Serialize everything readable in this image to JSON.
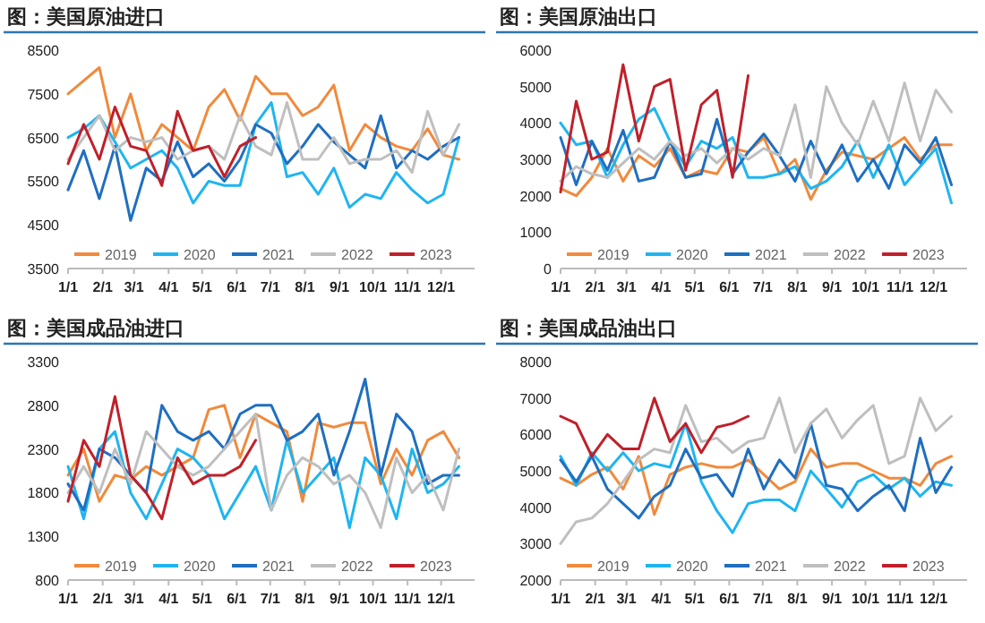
{
  "chart_data": [
    {
      "type": "line",
      "title": "图：美国原油进口",
      "x": [
        "--01-01",
        "--01-15",
        "--01-29",
        "--02-12",
        "--02-26",
        "--03-12",
        "--03-26",
        "--04-09",
        "--04-23",
        "--05-07",
        "--05-21",
        "--06-04",
        "--06-18",
        "--07-02",
        "--07-16",
        "--07-30",
        "--08-13",
        "--08-27",
        "--09-10",
        "--09-24",
        "--10-08",
        "--10-22",
        "--11-05",
        "--11-19",
        "--12-03",
        "--12-17"
      ],
      "xlim": [
        "--01-01",
        "--12-31"
      ],
      "xticks": [
        {
          "value": "--01-01",
          "label": "1/1"
        },
        {
          "value": "--02-01",
          "label": "2/1"
        },
        {
          "value": "--03-01",
          "label": "3/1"
        },
        {
          "value": "--04-01",
          "label": "4/1"
        },
        {
          "value": "--05-01",
          "label": "5/1"
        },
        {
          "value": "--06-01",
          "label": "6/1"
        },
        {
          "value": "--07-01",
          "label": "7/1"
        },
        {
          "value": "--08-01",
          "label": "8/1"
        },
        {
          "value": "--09-01",
          "label": "9/1"
        },
        {
          "value": "--10-01",
          "label": "10/1"
        },
        {
          "value": "--11-01",
          "label": "11/1"
        },
        {
          "value": "--12-01",
          "label": "12/1"
        }
      ],
      "ylim": [
        3500,
        8500
      ],
      "yticks": [
        3500,
        4500,
        5500,
        6500,
        7500,
        8500
      ],
      "legend": "bottom",
      "grid": false,
      "series": [
        {
          "name": "2019",
          "color": "#f08a3c",
          "values": [
            7500,
            7800,
            8100,
            6500,
            7500,
            6200,
            6800,
            6500,
            6200,
            7200,
            7600,
            6900,
            7900,
            7500,
            7500,
            7000,
            7200,
            7700,
            6200,
            6800,
            6500,
            6300,
            6200,
            6700,
            6100,
            6000
          ]
        },
        {
          "name": "2020",
          "color": "#1fb5f0",
          "values": [
            6500,
            6700,
            7000,
            6400,
            5800,
            6000,
            6200,
            5800,
            5000,
            5500,
            5400,
            5400,
            6800,
            7300,
            5600,
            5700,
            5200,
            5800,
            4900,
            5200,
            5100,
            5700,
            5300,
            5000,
            5200,
            6500
          ]
        },
        {
          "name": "2021",
          "color": "#1f6fc0",
          "values": [
            5300,
            6200,
            5100,
            6300,
            4600,
            5800,
            5500,
            6400,
            5600,
            5900,
            5500,
            6000,
            6800,
            6600,
            5900,
            6300,
            6800,
            6400,
            6100,
            5800,
            7000,
            5800,
            6200,
            6000,
            6300,
            6500
          ]
        },
        {
          "name": "2022",
          "color": "#bfbfbf",
          "values": [
            6000,
            6500,
            7000,
            6200,
            6500,
            6400,
            6500,
            6000,
            6200,
            6300,
            6000,
            7000,
            6300,
            6100,
            7300,
            6000,
            6000,
            6500,
            5900,
            6000,
            6000,
            6200,
            5700,
            7100,
            6100,
            6800
          ]
        },
        {
          "name": "2023",
          "color": "#c0202a",
          "x": [
            "--01-01",
            "--01-15",
            "--01-29",
            "--02-12",
            "--02-26",
            "--03-12",
            "--03-26",
            "--04-09",
            "--04-23",
            "--05-07",
            "--05-21",
            "--06-04",
            "--06-18"
          ],
          "values": [
            5900,
            6800,
            6000,
            7200,
            6300,
            6200,
            5400,
            7100,
            6200,
            6300,
            5600,
            6300,
            6500
          ]
        }
      ]
    },
    {
      "type": "line",
      "title": "图：美国原油出口",
      "x": [
        "--01-01",
        "--01-15",
        "--01-29",
        "--02-12",
        "--02-26",
        "--03-12",
        "--03-26",
        "--04-09",
        "--04-23",
        "--05-07",
        "--05-21",
        "--06-04",
        "--06-18",
        "--07-02",
        "--07-16",
        "--07-30",
        "--08-13",
        "--08-27",
        "--09-10",
        "--09-24",
        "--10-08",
        "--10-22",
        "--11-05",
        "--11-19",
        "--12-03",
        "--12-17"
      ],
      "xlim": [
        "--01-01",
        "--12-31"
      ],
      "xticks": [
        {
          "value": "--01-01",
          "label": "1/1"
        },
        {
          "value": "--02-01",
          "label": "2/1"
        },
        {
          "value": "--03-01",
          "label": "3/1"
        },
        {
          "value": "--04-01",
          "label": "4/1"
        },
        {
          "value": "--05-01",
          "label": "5/1"
        },
        {
          "value": "--06-01",
          "label": "6/1"
        },
        {
          "value": "--07-01",
          "label": "7/1"
        },
        {
          "value": "--08-01",
          "label": "8/1"
        },
        {
          "value": "--09-01",
          "label": "9/1"
        },
        {
          "value": "--10-01",
          "label": "10/1"
        },
        {
          "value": "--11-01",
          "label": "11/1"
        },
        {
          "value": "--12-01",
          "label": "12/1"
        }
      ],
      "ylim": [
        0,
        6000
      ],
      "yticks": [
        0,
        1000,
        2000,
        3000,
        4000,
        5000,
        6000
      ],
      "legend": "bottom",
      "grid": false,
      "series": [
        {
          "name": "2019",
          "color": "#f08a3c",
          "values": [
            2200,
            2000,
            2500,
            3300,
            2400,
            3100,
            2800,
            3300,
            2500,
            2700,
            2600,
            3300,
            3200,
            3600,
            2600,
            3000,
            1900,
            2700,
            3200,
            3100,
            3000,
            3300,
            3600,
            3000,
            3400,
            3400
          ]
        },
        {
          "name": "2020",
          "color": "#1fb5f0",
          "values": [
            4000,
            3400,
            3500,
            2500,
            3400,
            4100,
            4400,
            3500,
            2800,
            3500,
            3300,
            3600,
            2500,
            2500,
            2600,
            2800,
            2200,
            2400,
            2800,
            3500,
            2500,
            3400,
            2300,
            2800,
            3300,
            1800
          ]
        },
        {
          "name": "2021",
          "color": "#1f6fc0",
          "values": [
            3600,
            2300,
            3500,
            2700,
            3800,
            2400,
            2500,
            3500,
            2500,
            2600,
            4100,
            2600,
            3200,
            3700,
            3100,
            2400,
            3500,
            2600,
            3400,
            2400,
            3000,
            2200,
            3400,
            2900,
            3600,
            2300
          ]
        },
        {
          "name": "2022",
          "color": "#bfbfbf",
          "values": [
            2400,
            2800,
            2600,
            2500,
            2900,
            3300,
            3000,
            3500,
            3100,
            3300,
            2900,
            3300,
            3000,
            3300,
            3100,
            4500,
            2500,
            5000,
            4000,
            3400,
            4600,
            3500,
            5100,
            3500,
            4900,
            4300
          ]
        },
        {
          "name": "2023",
          "color": "#c0202a",
          "x": [
            "--01-01",
            "--01-15",
            "--01-29",
            "--02-12",
            "--02-26",
            "--03-12",
            "--03-26",
            "--04-09",
            "--04-23",
            "--05-07",
            "--05-21",
            "--06-04",
            "--06-18"
          ],
          "values": [
            2100,
            4600,
            3000,
            3200,
            5600,
            3500,
            5000,
            5200,
            2700,
            4500,
            4900,
            2500,
            5300
          ]
        }
      ]
    },
    {
      "type": "line",
      "title": "图：美国成品油进口",
      "x": [
        "--01-01",
        "--01-15",
        "--01-29",
        "--02-12",
        "--02-26",
        "--03-12",
        "--03-26",
        "--04-09",
        "--04-23",
        "--05-07",
        "--05-21",
        "--06-04",
        "--06-18",
        "--07-02",
        "--07-16",
        "--07-30",
        "--08-13",
        "--08-27",
        "--09-10",
        "--09-24",
        "--10-08",
        "--10-22",
        "--11-05",
        "--11-19",
        "--12-03",
        "--12-17"
      ],
      "xlim": [
        "--01-01",
        "--12-31"
      ],
      "xticks": [
        {
          "value": "--01-01",
          "label": "1/1"
        },
        {
          "value": "--02-01",
          "label": "2/1"
        },
        {
          "value": "--03-01",
          "label": "3/1"
        },
        {
          "value": "--04-01",
          "label": "4/1"
        },
        {
          "value": "--05-01",
          "label": "5/1"
        },
        {
          "value": "--06-01",
          "label": "6/1"
        },
        {
          "value": "--07-01",
          "label": "7/1"
        },
        {
          "value": "--08-01",
          "label": "8/1"
        },
        {
          "value": "--09-01",
          "label": "9/1"
        },
        {
          "value": "--10-01",
          "label": "10/1"
        },
        {
          "value": "--11-01",
          "label": "11/1"
        },
        {
          "value": "--12-01",
          "label": "12/1"
        }
      ],
      "ylim": [
        800,
        3300
      ],
      "yticks": [
        800,
        1300,
        1800,
        2300,
        2800,
        3300
      ],
      "legend": "bottom",
      "grid": false,
      "series": [
        {
          "name": "2019",
          "color": "#f08a3c",
          "values": [
            2000,
            2300,
            1700,
            2000,
            1950,
            2100,
            2000,
            2100,
            2200,
            2750,
            2800,
            2200,
            2700,
            2600,
            2500,
            1700,
            2600,
            2550,
            2600,
            2600,
            1900,
            2300,
            2000,
            2400,
            2500,
            2200
          ]
        },
        {
          "name": "2020",
          "color": "#1fb5f0",
          "values": [
            2100,
            1500,
            2300,
            2500,
            1800,
            1500,
            1900,
            2300,
            2200,
            2000,
            1500,
            1800,
            2100,
            1600,
            2400,
            1800,
            2000,
            2200,
            1400,
            2200,
            2000,
            1500,
            2300,
            1800,
            1900,
            2100
          ]
        },
        {
          "name": "2021",
          "color": "#1f6fc0",
          "values": [
            1900,
            1600,
            2300,
            2200,
            2000,
            1800,
            2800,
            2500,
            2400,
            2500,
            2300,
            2700,
            2800,
            2800,
            2400,
            2500,
            2700,
            2000,
            2500,
            3100,
            2000,
            2700,
            2500,
            1900,
            2000,
            2000
          ]
        },
        {
          "name": "2022",
          "color": "#bfbfbf",
          "values": [
            1800,
            2100,
            1800,
            2300,
            1900,
            2500,
            2300,
            2100,
            2000,
            2100,
            2300,
            2500,
            2700,
            1600,
            2000,
            2200,
            2100,
            1900,
            2000,
            1800,
            1400,
            2200,
            1800,
            2000,
            1600,
            2300
          ]
        },
        {
          "name": "2023",
          "color": "#c0202a",
          "x": [
            "--01-01",
            "--01-15",
            "--01-29",
            "--02-12",
            "--02-26",
            "--03-12",
            "--03-26",
            "--04-09",
            "--04-23",
            "--05-07",
            "--05-21",
            "--06-04",
            "--06-18"
          ],
          "values": [
            1700,
            2400,
            2100,
            2900,
            2000,
            1800,
            1500,
            2200,
            1900,
            2000,
            2000,
            2100,
            2400
          ]
        }
      ]
    },
    {
      "type": "line",
      "title": "图：美国成品油出口",
      "x": [
        "--01-01",
        "--01-15",
        "--01-29",
        "--02-12",
        "--02-26",
        "--03-12",
        "--03-26",
        "--04-09",
        "--04-23",
        "--05-07",
        "--05-21",
        "--06-04",
        "--06-18",
        "--07-02",
        "--07-16",
        "--07-30",
        "--08-13",
        "--08-27",
        "--09-10",
        "--09-24",
        "--10-08",
        "--10-22",
        "--11-05",
        "--11-19",
        "--12-03",
        "--12-17"
      ],
      "xlim": [
        "--01-01",
        "--12-31"
      ],
      "xticks": [
        {
          "value": "--01-01",
          "label": "1/1"
        },
        {
          "value": "--02-01",
          "label": "2/1"
        },
        {
          "value": "--03-01",
          "label": "3/1"
        },
        {
          "value": "--04-01",
          "label": "4/1"
        },
        {
          "value": "--05-01",
          "label": "5/1"
        },
        {
          "value": "--06-01",
          "label": "6/1"
        },
        {
          "value": "--07-01",
          "label": "7/1"
        },
        {
          "value": "--08-01",
          "label": "8/1"
        },
        {
          "value": "--09-01",
          "label": "9/1"
        },
        {
          "value": "--10-01",
          "label": "10/1"
        },
        {
          "value": "--11-01",
          "label": "11/1"
        },
        {
          "value": "--12-01",
          "label": "12/1"
        }
      ],
      "ylim": [
        2000,
        8000
      ],
      "yticks": [
        2000,
        3000,
        4000,
        5000,
        6000,
        7000,
        8000
      ],
      "legend": "bottom",
      "grid": false,
      "series": [
        {
          "name": "2019",
          "color": "#f08a3c",
          "values": [
            4800,
            4600,
            4900,
            5100,
            4500,
            5400,
            3800,
            4900,
            5100,
            5200,
            5100,
            5100,
            5300,
            4900,
            4500,
            4700,
            5600,
            5100,
            5200,
            5200,
            5000,
            4800,
            4800,
            4600,
            5200,
            5400
          ]
        },
        {
          "name": "2020",
          "color": "#1fb5f0",
          "values": [
            5400,
            4600,
            5500,
            5000,
            5500,
            5000,
            5200,
            5100,
            6300,
            4700,
            3900,
            3300,
            4100,
            4200,
            4200,
            3900,
            5000,
            4500,
            4000,
            4700,
            4900,
            4500,
            4800,
            4300,
            4700,
            4600
          ]
        },
        {
          "name": "2021",
          "color": "#1f6fc0",
          "values": [
            5300,
            4700,
            5400,
            4500,
            4100,
            3700,
            4300,
            4600,
            5600,
            4800,
            4900,
            4300,
            5600,
            4500,
            5300,
            4800,
            6300,
            4600,
            4500,
            3900,
            4300,
            4600,
            3900,
            5900,
            4400,
            5100
          ]
        },
        {
          "name": "2022",
          "color": "#bfbfbf",
          "values": [
            3000,
            3600,
            3700,
            4100,
            4700,
            5300,
            5600,
            5500,
            6800,
            5800,
            5900,
            5500,
            5800,
            5900,
            7000,
            5500,
            6300,
            6700,
            5900,
            6400,
            6800,
            5200,
            5400,
            7000,
            6100,
            6500
          ]
        },
        {
          "name": "2023",
          "color": "#c0202a",
          "x": [
            "--01-01",
            "--01-15",
            "--01-29",
            "--02-12",
            "--02-26",
            "--03-12",
            "--03-26",
            "--04-09",
            "--04-23",
            "--05-07",
            "--05-21",
            "--06-04",
            "--06-18"
          ],
          "values": [
            6500,
            6300,
            5400,
            6000,
            5600,
            5600,
            7000,
            5800,
            6300,
            5500,
            6200,
            6300,
            6500
          ]
        }
      ]
    }
  ]
}
